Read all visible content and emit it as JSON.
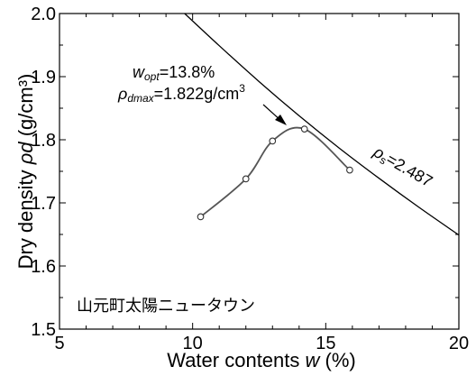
{
  "chart_data": {
    "type": "scatter",
    "xlabel": "Water contents",
    "xlabel_var": "w",
    "xlabel_unit": "(%)",
    "ylabel": "Dry density",
    "ylabel_var": "ρd",
    "ylabel_unit": "(g/cm³)",
    "xlim": [
      5,
      20
    ],
    "ylim": [
      1.5,
      2.0
    ],
    "x_ticks": [
      5,
      10,
      15,
      20
    ],
    "y_ticks": [
      1.5,
      1.6,
      1.7,
      1.8,
      1.9,
      2.0
    ],
    "x_tick_labels": [
      "5",
      "10",
      "15",
      "20"
    ],
    "y_tick_labels": [
      "1.5",
      "1.6",
      "1.7",
      "1.8",
      "1.9",
      "2.0"
    ],
    "grid": false,
    "series": [
      {
        "kind": "points-with-curve",
        "x": [
          10.3,
          12.0,
          13.0,
          14.2,
          15.9
        ],
        "y": [
          1.678,
          1.738,
          1.798,
          1.817,
          1.752
        ]
      },
      {
        "kind": "saturation-curve",
        "label": "ρs=2.487",
        "x": [
          9.7,
          11,
          12.5,
          14,
          15.5,
          17,
          18.5,
          20
        ],
        "y": [
          2.0,
          1.949,
          1.892,
          1.838,
          1.787,
          1.739,
          1.693,
          1.649
        ]
      }
    ],
    "annotations": {
      "wopt_var": "w",
      "wopt_sub": "opt",
      "wopt_value": "=13.8%",
      "rho_var": "ρ",
      "rho_sub": "dmax",
      "rho_value": "=1.822g/cm",
      "rho_exp": "3",
      "arrow_to": [
        13.9,
        1.822
      ],
      "place_name": "山元町太陽ニュータウン"
    }
  }
}
